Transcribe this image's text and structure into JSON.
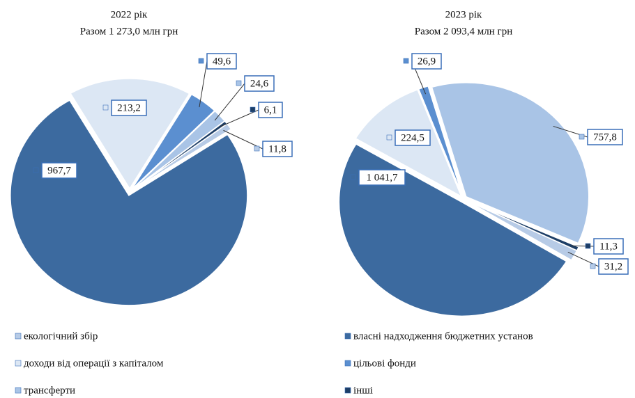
{
  "legend": [
    {
      "name": "екологічний збір",
      "color": "#b7cbe6"
    },
    {
      "name": "власні надходження бюджетних установ",
      "color": "#3c6a9f"
    },
    {
      "name": "доходи від операції з капіталом",
      "color": "#dce7f4"
    },
    {
      "name": "цільові фонди",
      "color": "#5b8fd0"
    },
    {
      "name": "трансферти",
      "color": "#a9c4e6"
    },
    {
      "name": "інші",
      "color": "#1d3e66"
    }
  ],
  "chart_data": [
    {
      "type": "pie",
      "title": "2022 рік",
      "subtitle": "Разом 1 273,0 млн грн",
      "values": [
        11.8,
        967.7,
        213.2,
        49.6,
        24.6,
        6.1
      ],
      "value_labels": [
        "11,8",
        "967,7",
        "213,2",
        "49,6",
        "24,6",
        "6,1"
      ]
    },
    {
      "type": "pie",
      "title": "2023 рік",
      "subtitle": "Разом 2 093,4 млн грн",
      "values": [
        31.2,
        1041.7,
        224.5,
        26.9,
        757.8,
        11.3
      ],
      "value_labels": [
        "31,2",
        "1 041,7",
        "224,5",
        "26,9",
        "757,8",
        "11,3"
      ]
    }
  ]
}
